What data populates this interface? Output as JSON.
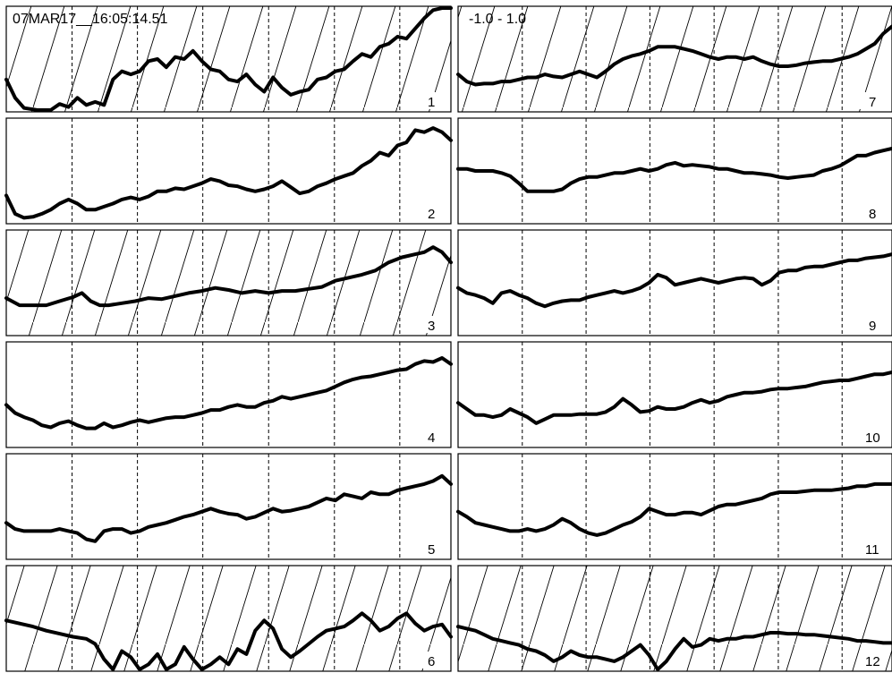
{
  "header": {
    "timestamp": "07MAR17__16:05:14.51",
    "scale_range": "-1.0 - 1.0"
  },
  "colors": {
    "trace": "#000000",
    "frame": "#000000",
    "background": "#ffffff"
  },
  "chart_data": {
    "type": "line",
    "title": "",
    "x_range": [
      0,
      100
    ],
    "y_range": [
      0,
      1
    ],
    "vertical_gridlines": "dashed",
    "hatched_panels": [
      "1",
      "3",
      "6",
      "7",
      "12"
    ],
    "panels": [
      {
        "label": "1",
        "column": 0,
        "row": 0,
        "hatched": true,
        "x": [
          0,
          2,
          4,
          7,
          10,
          12,
          14,
          16,
          18,
          20,
          22,
          24,
          26,
          28,
          30,
          32,
          34,
          36,
          38,
          40,
          42,
          44,
          46,
          48,
          50,
          52,
          54,
          56,
          58,
          60,
          62,
          64,
          66,
          68,
          70,
          72,
          74,
          76,
          78,
          80,
          82,
          84,
          86,
          88,
          90,
          92,
          94,
          96,
          98,
          100
        ],
        "y": [
          0.3,
          0.12,
          0.02,
          0.0,
          0.0,
          0.06,
          0.03,
          0.12,
          0.05,
          0.08,
          0.05,
          0.3,
          0.38,
          0.35,
          0.38,
          0.48,
          0.5,
          0.42,
          0.52,
          0.5,
          0.58,
          0.48,
          0.4,
          0.38,
          0.3,
          0.28,
          0.35,
          0.25,
          0.18,
          0.32,
          0.22,
          0.15,
          0.18,
          0.2,
          0.3,
          0.32,
          0.38,
          0.4,
          0.48,
          0.55,
          0.52,
          0.62,
          0.65,
          0.72,
          0.7,
          0.8,
          0.9,
          0.98,
          1.0,
          1.0
        ]
      },
      {
        "label": "2",
        "column": 0,
        "row": 1,
        "hatched": false,
        "x": [
          0,
          2,
          4,
          6,
          8,
          10,
          12,
          14,
          16,
          18,
          20,
          22,
          24,
          26,
          28,
          30,
          32,
          34,
          36,
          38,
          40,
          42,
          44,
          46,
          48,
          50,
          52,
          54,
          56,
          58,
          60,
          62,
          64,
          66,
          68,
          70,
          72,
          74,
          76,
          78,
          80,
          82,
          84,
          86,
          88,
          90,
          92,
          94,
          96,
          98,
          100
        ],
        "y": [
          0.26,
          0.08,
          0.04,
          0.05,
          0.08,
          0.12,
          0.18,
          0.22,
          0.18,
          0.12,
          0.12,
          0.15,
          0.18,
          0.22,
          0.24,
          0.22,
          0.25,
          0.3,
          0.3,
          0.33,
          0.32,
          0.35,
          0.38,
          0.42,
          0.4,
          0.36,
          0.35,
          0.32,
          0.3,
          0.32,
          0.35,
          0.4,
          0.34,
          0.28,
          0.3,
          0.35,
          0.38,
          0.42,
          0.45,
          0.48,
          0.55,
          0.6,
          0.68,
          0.65,
          0.75,
          0.78,
          0.9,
          0.88,
          0.92,
          0.88,
          0.8
        ]
      },
      {
        "label": "3",
        "column": 0,
        "row": 2,
        "hatched": true,
        "x": [
          0,
          3,
          6,
          9,
          12,
          15,
          17,
          19,
          21,
          23,
          26,
          29,
          32,
          35,
          38,
          41,
          44,
          47,
          50,
          53,
          56,
          59,
          62,
          65,
          68,
          71,
          74,
          77,
          80,
          83,
          86,
          89,
          92,
          94,
          96,
          98,
          100
        ],
        "y": [
          0.35,
          0.28,
          0.28,
          0.28,
          0.32,
          0.36,
          0.4,
          0.32,
          0.28,
          0.28,
          0.3,
          0.32,
          0.35,
          0.34,
          0.37,
          0.4,
          0.42,
          0.45,
          0.43,
          0.4,
          0.42,
          0.4,
          0.42,
          0.42,
          0.44,
          0.46,
          0.52,
          0.55,
          0.58,
          0.62,
          0.7,
          0.75,
          0.78,
          0.8,
          0.85,
          0.8,
          0.7
        ]
      },
      {
        "label": "4",
        "column": 0,
        "row": 3,
        "hatched": false,
        "x": [
          0,
          2,
          4,
          6,
          8,
          10,
          12,
          14,
          16,
          18,
          20,
          22,
          24,
          26,
          28,
          30,
          32,
          34,
          36,
          38,
          40,
          42,
          44,
          46,
          48,
          50,
          52,
          54,
          56,
          58,
          60,
          62,
          64,
          66,
          68,
          70,
          72,
          74,
          76,
          78,
          80,
          82,
          84,
          86,
          88,
          90,
          92,
          94,
          96,
          98,
          100
        ],
        "y": [
          0.4,
          0.32,
          0.28,
          0.25,
          0.2,
          0.18,
          0.22,
          0.24,
          0.2,
          0.17,
          0.17,
          0.22,
          0.18,
          0.2,
          0.23,
          0.25,
          0.23,
          0.25,
          0.27,
          0.28,
          0.28,
          0.3,
          0.32,
          0.35,
          0.35,
          0.38,
          0.4,
          0.38,
          0.38,
          0.42,
          0.44,
          0.48,
          0.46,
          0.48,
          0.5,
          0.52,
          0.54,
          0.58,
          0.62,
          0.65,
          0.67,
          0.68,
          0.7,
          0.72,
          0.74,
          0.75,
          0.8,
          0.83,
          0.82,
          0.86,
          0.8
        ]
      },
      {
        "label": "5",
        "column": 0,
        "row": 4,
        "hatched": false,
        "x": [
          0,
          2,
          4,
          6,
          8,
          10,
          12,
          14,
          16,
          18,
          20,
          22,
          24,
          26,
          28,
          30,
          32,
          34,
          36,
          38,
          40,
          42,
          44,
          46,
          48,
          50,
          52,
          54,
          56,
          58,
          60,
          62,
          64,
          66,
          68,
          70,
          72,
          74,
          76,
          78,
          80,
          82,
          84,
          86,
          88,
          90,
          92,
          94,
          96,
          98,
          100
        ],
        "y": [
          0.34,
          0.28,
          0.26,
          0.26,
          0.26,
          0.26,
          0.28,
          0.26,
          0.24,
          0.18,
          0.16,
          0.26,
          0.28,
          0.28,
          0.24,
          0.26,
          0.3,
          0.32,
          0.34,
          0.37,
          0.4,
          0.42,
          0.45,
          0.48,
          0.45,
          0.43,
          0.42,
          0.38,
          0.4,
          0.44,
          0.48,
          0.45,
          0.46,
          0.48,
          0.5,
          0.54,
          0.58,
          0.56,
          0.62,
          0.6,
          0.58,
          0.64,
          0.62,
          0.62,
          0.66,
          0.68,
          0.7,
          0.72,
          0.75,
          0.8,
          0.72
        ]
      },
      {
        "label": "6",
        "column": 0,
        "row": 5,
        "hatched": true,
        "x": [
          0,
          3,
          6,
          9,
          12,
          15,
          18,
          20,
          22,
          24,
          26,
          28,
          30,
          32,
          34,
          36,
          38,
          40,
          42,
          44,
          46,
          48,
          50,
          52,
          54,
          56,
          58,
          60,
          62,
          64,
          66,
          68,
          70,
          72,
          74,
          76,
          78,
          80,
          82,
          84,
          86,
          88,
          90,
          92,
          94,
          96,
          98,
          100
        ],
        "y": [
          0.48,
          0.45,
          0.42,
          0.38,
          0.35,
          0.32,
          0.3,
          0.25,
          0.1,
          0.0,
          0.18,
          0.12,
          0.0,
          0.05,
          0.15,
          0.0,
          0.05,
          0.22,
          0.1,
          0.0,
          0.05,
          0.12,
          0.05,
          0.2,
          0.15,
          0.38,
          0.48,
          0.4,
          0.2,
          0.12,
          0.18,
          0.25,
          0.32,
          0.38,
          0.4,
          0.42,
          0.48,
          0.55,
          0.48,
          0.38,
          0.42,
          0.5,
          0.55,
          0.45,
          0.38,
          0.42,
          0.44,
          0.32
        ]
      },
      {
        "label": "7",
        "column": 1,
        "row": 0,
        "hatched": true,
        "x": [
          0,
          2,
          4,
          6,
          8,
          10,
          12,
          14,
          16,
          18,
          20,
          22,
          24,
          26,
          28,
          30,
          32,
          34,
          36,
          38,
          40,
          42,
          44,
          46,
          48,
          50,
          52,
          54,
          56,
          58,
          60,
          62,
          64,
          66,
          68,
          70,
          72,
          74,
          76,
          78,
          80,
          82,
          84,
          86,
          88,
          90,
          92,
          94,
          96,
          98,
          100
        ],
        "y": [
          0.35,
          0.28,
          0.25,
          0.26,
          0.26,
          0.28,
          0.28,
          0.3,
          0.32,
          0.32,
          0.35,
          0.33,
          0.32,
          0.35,
          0.38,
          0.35,
          0.32,
          0.38,
          0.45,
          0.5,
          0.53,
          0.55,
          0.58,
          0.62,
          0.62,
          0.62,
          0.6,
          0.58,
          0.55,
          0.52,
          0.5,
          0.52,
          0.52,
          0.5,
          0.52,
          0.48,
          0.45,
          0.43,
          0.43,
          0.44,
          0.46,
          0.47,
          0.48,
          0.48,
          0.5,
          0.52,
          0.55,
          0.6,
          0.65,
          0.75,
          0.82
        ]
      },
      {
        "label": "8",
        "column": 1,
        "row": 1,
        "hatched": false,
        "x": [
          0,
          2,
          4,
          6,
          8,
          10,
          12,
          14,
          16,
          18,
          20,
          22,
          24,
          26,
          28,
          30,
          32,
          34,
          36,
          38,
          40,
          42,
          44,
          46,
          48,
          50,
          52,
          54,
          56,
          58,
          60,
          62,
          64,
          66,
          68,
          70,
          72,
          74,
          76,
          78,
          80,
          82,
          84,
          86,
          88,
          90,
          92,
          94,
          96,
          98,
          100
        ],
        "y": [
          0.52,
          0.52,
          0.5,
          0.5,
          0.5,
          0.48,
          0.45,
          0.38,
          0.3,
          0.3,
          0.3,
          0.3,
          0.32,
          0.38,
          0.42,
          0.44,
          0.44,
          0.46,
          0.48,
          0.48,
          0.5,
          0.52,
          0.5,
          0.52,
          0.56,
          0.58,
          0.55,
          0.56,
          0.55,
          0.54,
          0.52,
          0.52,
          0.5,
          0.48,
          0.48,
          0.47,
          0.46,
          0.44,
          0.43,
          0.44,
          0.45,
          0.46,
          0.5,
          0.52,
          0.55,
          0.6,
          0.65,
          0.65,
          0.68,
          0.7,
          0.72
        ]
      },
      {
        "label": "9",
        "column": 1,
        "row": 2,
        "hatched": false,
        "x": [
          0,
          2,
          4,
          6,
          8,
          10,
          12,
          14,
          16,
          18,
          20,
          22,
          24,
          26,
          28,
          30,
          32,
          34,
          36,
          38,
          40,
          42,
          44,
          46,
          48,
          50,
          52,
          54,
          56,
          58,
          60,
          62,
          64,
          66,
          68,
          70,
          72,
          74,
          76,
          78,
          80,
          82,
          84,
          86,
          88,
          90,
          92,
          94,
          96,
          98,
          100
        ],
        "y": [
          0.45,
          0.4,
          0.38,
          0.35,
          0.3,
          0.4,
          0.42,
          0.38,
          0.35,
          0.3,
          0.27,
          0.3,
          0.32,
          0.33,
          0.33,
          0.36,
          0.38,
          0.4,
          0.42,
          0.4,
          0.42,
          0.45,
          0.5,
          0.58,
          0.55,
          0.48,
          0.5,
          0.52,
          0.54,
          0.52,
          0.5,
          0.52,
          0.54,
          0.55,
          0.54,
          0.48,
          0.52,
          0.6,
          0.62,
          0.62,
          0.65,
          0.66,
          0.66,
          0.68,
          0.7,
          0.72,
          0.72,
          0.74,
          0.75,
          0.76,
          0.78
        ]
      },
      {
        "label": "10",
        "column": 1,
        "row": 3,
        "hatched": false,
        "x": [
          0,
          2,
          4,
          6,
          8,
          10,
          12,
          14,
          16,
          18,
          20,
          22,
          24,
          26,
          28,
          30,
          32,
          34,
          36,
          38,
          40,
          42,
          44,
          46,
          48,
          50,
          52,
          54,
          56,
          58,
          60,
          62,
          64,
          66,
          68,
          70,
          72,
          74,
          76,
          78,
          80,
          82,
          84,
          86,
          88,
          90,
          92,
          94,
          96,
          98,
          100
        ],
        "y": [
          0.42,
          0.36,
          0.3,
          0.3,
          0.28,
          0.3,
          0.36,
          0.32,
          0.28,
          0.22,
          0.26,
          0.3,
          0.3,
          0.3,
          0.31,
          0.31,
          0.31,
          0.33,
          0.38,
          0.46,
          0.4,
          0.33,
          0.34,
          0.38,
          0.36,
          0.36,
          0.38,
          0.42,
          0.45,
          0.42,
          0.44,
          0.48,
          0.5,
          0.52,
          0.52,
          0.53,
          0.55,
          0.56,
          0.56,
          0.57,
          0.58,
          0.6,
          0.62,
          0.63,
          0.64,
          0.64,
          0.66,
          0.68,
          0.7,
          0.7,
          0.72
        ]
      },
      {
        "label": "11",
        "column": 1,
        "row": 4,
        "hatched": false,
        "x": [
          0,
          2,
          4,
          6,
          8,
          10,
          12,
          14,
          16,
          18,
          20,
          22,
          24,
          26,
          28,
          30,
          32,
          34,
          36,
          38,
          40,
          42,
          44,
          46,
          48,
          50,
          52,
          54,
          56,
          58,
          60,
          62,
          64,
          66,
          68,
          70,
          72,
          74,
          76,
          78,
          80,
          82,
          84,
          86,
          88,
          90,
          92,
          94,
          96,
          98,
          100
        ],
        "y": [
          0.45,
          0.4,
          0.34,
          0.32,
          0.3,
          0.28,
          0.26,
          0.26,
          0.28,
          0.26,
          0.28,
          0.32,
          0.38,
          0.34,
          0.28,
          0.24,
          0.22,
          0.24,
          0.28,
          0.32,
          0.35,
          0.4,
          0.48,
          0.45,
          0.42,
          0.42,
          0.44,
          0.44,
          0.42,
          0.46,
          0.5,
          0.52,
          0.52,
          0.54,
          0.56,
          0.58,
          0.62,
          0.64,
          0.64,
          0.64,
          0.65,
          0.66,
          0.66,
          0.66,
          0.67,
          0.68,
          0.7,
          0.7,
          0.72,
          0.72,
          0.72
        ]
      },
      {
        "label": "12",
        "column": 1,
        "row": 5,
        "hatched": true,
        "x": [
          0,
          2,
          4,
          6,
          8,
          10,
          12,
          14,
          16,
          18,
          20,
          22,
          24,
          26,
          28,
          30,
          32,
          34,
          36,
          38,
          40,
          42,
          44,
          46,
          48,
          50,
          52,
          54,
          56,
          58,
          60,
          62,
          64,
          66,
          68,
          70,
          72,
          74,
          76,
          78,
          80,
          82,
          84,
          86,
          88,
          90,
          92,
          94,
          96,
          98,
          100
        ],
        "y": [
          0.42,
          0.4,
          0.38,
          0.34,
          0.3,
          0.28,
          0.26,
          0.24,
          0.2,
          0.18,
          0.14,
          0.08,
          0.12,
          0.18,
          0.14,
          0.12,
          0.12,
          0.1,
          0.08,
          0.12,
          0.18,
          0.24,
          0.14,
          0.0,
          0.08,
          0.2,
          0.3,
          0.22,
          0.24,
          0.3,
          0.28,
          0.3,
          0.3,
          0.32,
          0.32,
          0.34,
          0.36,
          0.36,
          0.35,
          0.35,
          0.34,
          0.34,
          0.33,
          0.32,
          0.31,
          0.3,
          0.28,
          0.28,
          0.27,
          0.26,
          0.26
        ]
      }
    ]
  }
}
